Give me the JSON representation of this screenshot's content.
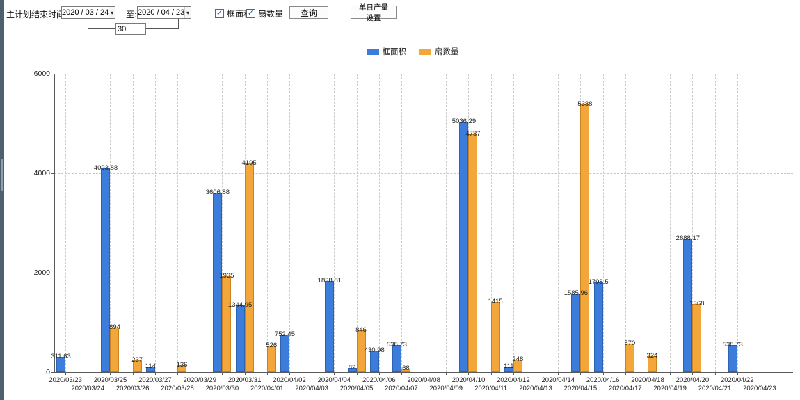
{
  "toolbar": {
    "title_label": "主计划结束时间:",
    "date_from": "2020 / 03 / 24",
    "to_label": "至:",
    "date_to": "2020 / 04 / 23",
    "interval_value": "30",
    "checkbox_frame_area": "框面积",
    "checkbox_fan_count": "扇数量",
    "query_button": "查询",
    "daily_output_button": "单日产量设置"
  },
  "icons": {
    "dropdown_arrow": "▾",
    "checkbox_check": "✓"
  },
  "legend": {
    "items": [
      {
        "label": "框面积",
        "color": "#3c7ddb"
      },
      {
        "label": "扇数量",
        "color": "#f3a73a"
      }
    ]
  },
  "chart_data": {
    "type": "bar",
    "title": "",
    "xlabel": "",
    "ylabel": "",
    "ylim": [
      0,
      6000
    ],
    "yticks": [
      0,
      2000,
      4000,
      6000
    ],
    "grid": true,
    "legend_position": "top",
    "categories": [
      "2020/03/23",
      "2020/03/24",
      "2020/03/25",
      "2020/03/26",
      "2020/03/27",
      "2020/03/28",
      "2020/03/29",
      "2020/03/30",
      "2020/03/31",
      "2020/04/01",
      "2020/04/02",
      "2020/04/03",
      "2020/04/04",
      "2020/04/05",
      "2020/04/06",
      "2020/04/07",
      "2020/04/08",
      "2020/04/09",
      "2020/04/10",
      "2020/04/11",
      "2020/04/12",
      "2020/04/13",
      "2020/04/14",
      "2020/04/15",
      "2020/04/16",
      "2020/04/17",
      "2020/04/18",
      "2020/04/19",
      "2020/04/20",
      "2020/04/21",
      "2020/04/22",
      "2020/04/23"
    ],
    "series": [
      {
        "name": "框面积",
        "color": "#3c7ddb",
        "border_color": "#2d62b0",
        "values": [
          311.63,
          null,
          4093.88,
          null,
          114,
          null,
          null,
          3606.88,
          1344.95,
          null,
          752.45,
          null,
          1838.81,
          82,
          430.98,
          538.73,
          null,
          null,
          5036.29,
          null,
          111,
          null,
          null,
          1585.96,
          1798.5,
          null,
          null,
          null,
          2688.17,
          null,
          538.73,
          null
        ]
      },
      {
        "name": "扇数量",
        "color": "#f3a73a",
        "border_color": "#c9821f",
        "values": [
          null,
          null,
          894,
          237,
          null,
          136,
          null,
          1935,
          4195,
          526,
          null,
          null,
          null,
          846,
          null,
          68,
          null,
          null,
          4787,
          1415,
          248,
          null,
          null,
          5388,
          null,
          570,
          324,
          null,
          1368,
          null,
          null,
          null
        ]
      }
    ]
  }
}
